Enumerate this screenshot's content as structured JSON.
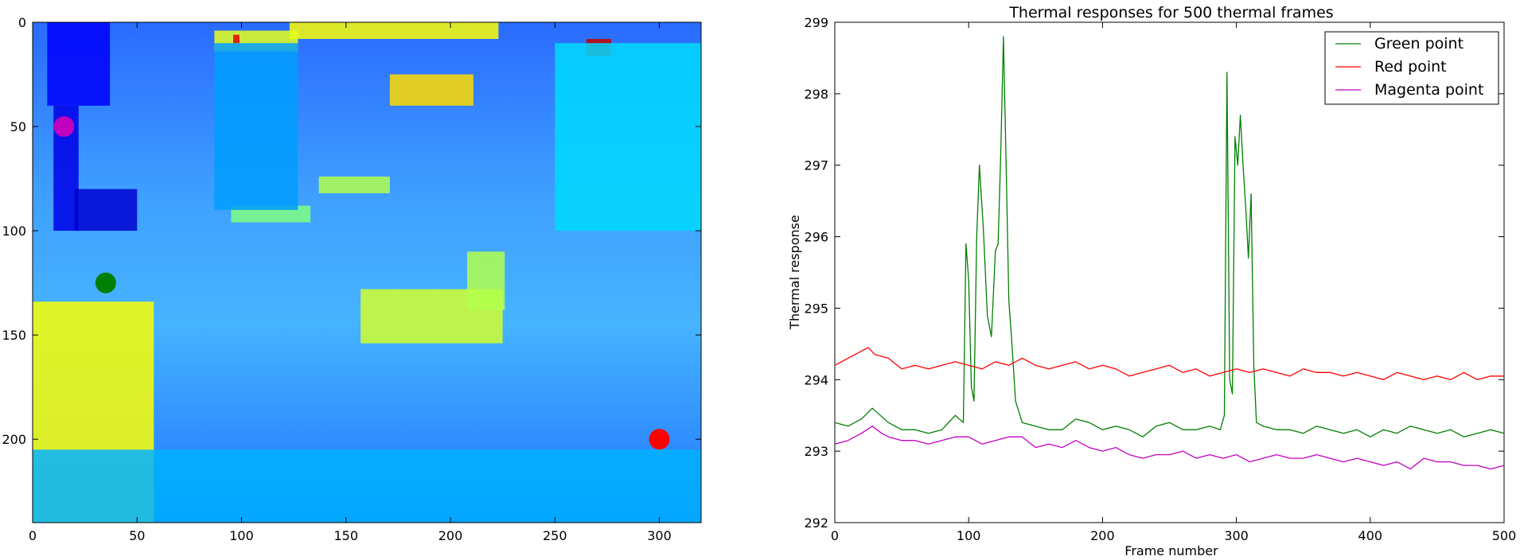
{
  "chart_data": [
    {
      "type": "heatmap",
      "title": "",
      "xlabel": "",
      "ylabel": "",
      "xlim": [
        0,
        320
      ],
      "ylim": [
        240,
        0
      ],
      "xticks": [
        0,
        50,
        100,
        150,
        200,
        250,
        300
      ],
      "yticks": [
        0,
        50,
        100,
        150,
        200
      ],
      "colormap": "jet",
      "markers": [
        {
          "label": "magenta",
          "x": 15,
          "y": 50,
          "color": "#c100c1"
        },
        {
          "label": "green",
          "x": 35,
          "y": 125,
          "color": "#007f00"
        },
        {
          "label": "red",
          "x": 300,
          "y": 200,
          "color": "#ff0000"
        }
      ],
      "features": [
        {
          "x": 0,
          "y": 134,
          "w": 58,
          "h": 106,
          "value": 0.62
        },
        {
          "x": 157,
          "y": 128,
          "w": 68,
          "h": 26,
          "value": 0.58
        },
        {
          "x": 171,
          "y": 25,
          "w": 40,
          "h": 15,
          "value": 0.66
        },
        {
          "x": 123,
          "y": 0,
          "w": 100,
          "h": 8,
          "value": 0.62
        },
        {
          "x": 87,
          "y": 4,
          "w": 40,
          "h": 10,
          "value": 0.6
        },
        {
          "x": 265,
          "y": 8,
          "w": 12,
          "h": 8,
          "value": 0.93
        },
        {
          "x": 96,
          "y": 6,
          "w": 3,
          "h": 4,
          "value": 0.9
        },
        {
          "x": 137,
          "y": 74,
          "w": 34,
          "h": 8,
          "value": 0.55
        },
        {
          "x": 95,
          "y": 88,
          "w": 38,
          "h": 8,
          "value": 0.5
        },
        {
          "x": 208,
          "y": 110,
          "w": 18,
          "h": 28,
          "value": 0.55
        },
        {
          "x": 10,
          "y": 40,
          "w": 12,
          "h": 60,
          "value": 0.1
        },
        {
          "x": 20,
          "y": 80,
          "w": 30,
          "h": 20,
          "value": 0.08
        },
        {
          "x": 7,
          "y": 0,
          "w": 30,
          "h": 40,
          "value": 0.12
        },
        {
          "x": 87,
          "y": 10,
          "w": 40,
          "h": 80,
          "value": 0.28
        },
        {
          "x": 250,
          "y": 10,
          "w": 70,
          "h": 90,
          "value": 0.34
        },
        {
          "x": 0,
          "y": 205,
          "w": 320,
          "h": 35,
          "value": 0.3
        }
      ]
    },
    {
      "type": "line",
      "title": "Thermal responses for 500 thermal frames",
      "xlabel": "Frame number",
      "ylabel": "Thermal response",
      "xlim": [
        0,
        500
      ],
      "ylim": [
        292,
        299
      ],
      "xticks": [
        0,
        100,
        200,
        300,
        400,
        500
      ],
      "yticks": [
        292,
        293,
        294,
        295,
        296,
        297,
        298,
        299
      ],
      "legend_position": "top-right",
      "grid": false,
      "series": [
        {
          "name": "Green point",
          "color": "#007f00",
          "x": [
            0,
            10,
            20,
            28,
            40,
            50,
            60,
            70,
            80,
            90,
            96,
            98,
            100,
            102,
            104,
            106,
            108,
            111,
            114,
            117,
            120,
            122,
            124,
            126,
            128,
            130,
            132,
            135,
            140,
            150,
            160,
            170,
            180,
            190,
            200,
            210,
            220,
            230,
            240,
            250,
            260,
            270,
            280,
            288,
            291,
            293,
            295,
            297,
            299,
            301,
            303,
            305,
            307,
            309,
            311,
            313,
            315,
            320,
            330,
            340,
            350,
            360,
            370,
            380,
            390,
            400,
            410,
            420,
            430,
            440,
            450,
            460,
            470,
            480,
            490,
            500
          ],
          "y": [
            293.4,
            293.35,
            293.45,
            293.6,
            293.4,
            293.3,
            293.3,
            293.25,
            293.3,
            293.5,
            293.4,
            295.9,
            295.4,
            293.9,
            293.7,
            296.0,
            297.0,
            296.1,
            294.9,
            294.6,
            295.8,
            295.9,
            297.2,
            298.8,
            297.0,
            295.1,
            294.6,
            293.7,
            293.4,
            293.35,
            293.3,
            293.3,
            293.45,
            293.4,
            293.3,
            293.35,
            293.3,
            293.2,
            293.35,
            293.4,
            293.3,
            293.3,
            293.35,
            293.3,
            293.5,
            298.3,
            294.0,
            293.8,
            297.4,
            297.0,
            297.7,
            297.0,
            296.4,
            295.7,
            296.6,
            294.2,
            293.4,
            293.35,
            293.3,
            293.3,
            293.25,
            293.35,
            293.3,
            293.25,
            293.3,
            293.2,
            293.3,
            293.25,
            293.35,
            293.3,
            293.25,
            293.3,
            293.2,
            293.25,
            293.3,
            293.25
          ]
        },
        {
          "name": "Red point",
          "color": "#ff0000",
          "x": [
            0,
            10,
            20,
            25,
            30,
            40,
            50,
            60,
            70,
            80,
            90,
            100,
            110,
            120,
            130,
            140,
            150,
            160,
            170,
            180,
            190,
            200,
            210,
            220,
            230,
            240,
            250,
            260,
            270,
            280,
            290,
            300,
            310,
            320,
            330,
            340,
            350,
            360,
            370,
            380,
            390,
            400,
            410,
            420,
            430,
            440,
            450,
            460,
            470,
            480,
            490,
            500
          ],
          "y": [
            294.2,
            294.3,
            294.4,
            294.45,
            294.35,
            294.3,
            294.15,
            294.2,
            294.15,
            294.2,
            294.25,
            294.2,
            294.15,
            294.25,
            294.2,
            294.3,
            294.2,
            294.15,
            294.2,
            294.25,
            294.15,
            294.2,
            294.15,
            294.05,
            294.1,
            294.15,
            294.2,
            294.1,
            294.15,
            294.05,
            294.1,
            294.15,
            294.1,
            294.15,
            294.1,
            294.05,
            294.15,
            294.1,
            294.1,
            294.05,
            294.1,
            294.05,
            294.0,
            294.1,
            294.05,
            294.0,
            294.05,
            294.0,
            294.1,
            294.0,
            294.05,
            294.05
          ]
        },
        {
          "name": "Magenta point",
          "color": "#c100c1",
          "x": [
            0,
            10,
            20,
            28,
            35,
            40,
            50,
            60,
            70,
            80,
            90,
            100,
            110,
            120,
            130,
            140,
            150,
            160,
            170,
            180,
            190,
            200,
            210,
            220,
            230,
            240,
            250,
            260,
            270,
            280,
            290,
            300,
            310,
            320,
            330,
            340,
            350,
            360,
            370,
            380,
            390,
            400,
            410,
            420,
            430,
            440,
            450,
            460,
            470,
            480,
            490,
            500
          ],
          "y": [
            293.1,
            293.15,
            293.25,
            293.35,
            293.25,
            293.2,
            293.15,
            293.15,
            293.1,
            293.15,
            293.2,
            293.2,
            293.1,
            293.15,
            293.2,
            293.2,
            293.05,
            293.1,
            293.05,
            293.15,
            293.05,
            293.0,
            293.05,
            292.95,
            292.9,
            292.95,
            292.95,
            293.0,
            292.9,
            292.95,
            292.9,
            292.95,
            292.85,
            292.9,
            292.95,
            292.9,
            292.9,
            292.95,
            292.9,
            292.85,
            292.9,
            292.85,
            292.8,
            292.85,
            292.75,
            292.9,
            292.85,
            292.85,
            292.8,
            292.8,
            292.75,
            292.8
          ]
        }
      ]
    }
  ]
}
